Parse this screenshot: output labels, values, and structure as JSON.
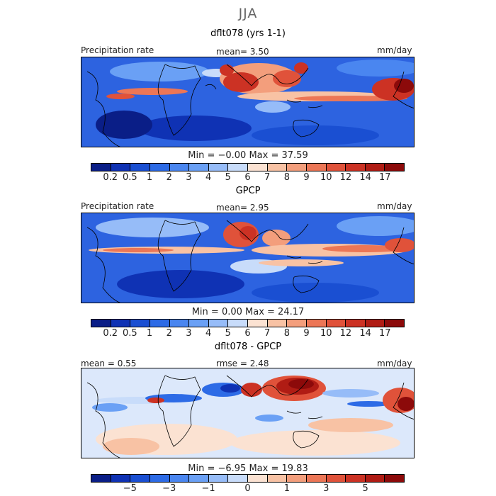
{
  "season": "JJA",
  "panels": [
    {
      "title": "dflt078 (yrs 1-1)",
      "left_label": "Precipitation rate",
      "center_label": "mean=   3.50",
      "right_label": "mm/day",
      "minmax": "Min =  −0.00  Max =  37.59"
    },
    {
      "title": "GPCP",
      "left_label": "Precipitation rate",
      "center_label": "mean=   2.95",
      "right_label": "mm/day",
      "minmax": "Min =    0.00  Max =  24.17"
    },
    {
      "title": "dflt078 - GPCP",
      "left_label": "mean =   0.55",
      "center_label": "rmse =    2.48",
      "right_label": "mm/day",
      "minmax": "Min =  −6.95  Max =  19.83"
    }
  ],
  "colorbar_precip": {
    "colors": [
      "#0a1e87",
      "#0f32b4",
      "#1a4fd2",
      "#2d6be6",
      "#4a86f0",
      "#6aa0f5",
      "#96bcf8",
      "#c8dcfa",
      "#fbe2d2",
      "#f8c2a4",
      "#f39e7c",
      "#ec7656",
      "#e0523a",
      "#cc3224",
      "#b01c14",
      "#8c0a0a"
    ],
    "ticks": [
      "0.2",
      "0.5",
      "1",
      "2",
      "3",
      "4",
      "5",
      "6",
      "7",
      "8",
      "9",
      "10",
      "12",
      "14",
      "17"
    ]
  },
  "colorbar_diff": {
    "colors": [
      "#0a1e87",
      "#0f32b4",
      "#1a4fd2",
      "#2d6be6",
      "#4a86f0",
      "#6aa0f5",
      "#96bcf8",
      "#c8dcfa",
      "#fbe2d2",
      "#f8c2a4",
      "#f39e7c",
      "#ec7656",
      "#e0523a",
      "#cc3224",
      "#b01c14",
      "#8c0a0a"
    ],
    "ticks": [
      "−5",
      "−3",
      "−1",
      "0",
      "1",
      "3",
      "5"
    ],
    "tick_boundaries": [
      1,
      3,
      5,
      7,
      9,
      11,
      13
    ]
  }
}
